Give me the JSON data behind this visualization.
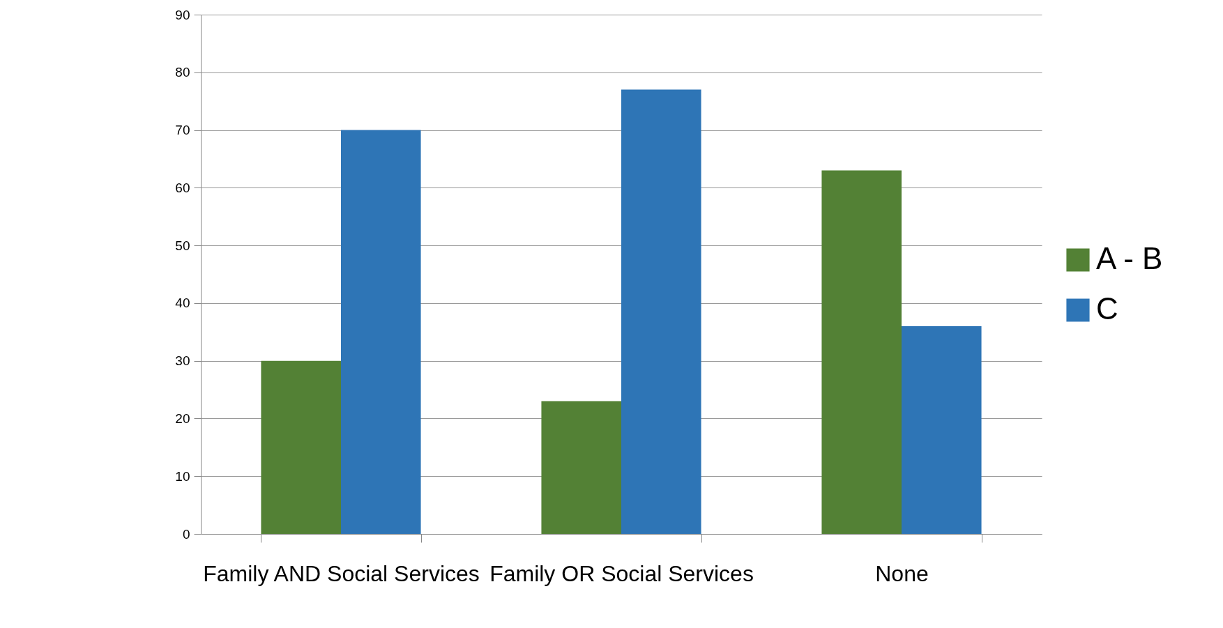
{
  "chart_data": {
    "type": "bar",
    "categories": [
      "Family AND Social Services",
      "Family OR Social Services",
      "None"
    ],
    "series": [
      {
        "name": "A - B",
        "color": "#538135",
        "values": [
          30,
          23,
          63
        ]
      },
      {
        "name": "C",
        "color": "#2e75b6",
        "values": [
          70,
          77,
          36
        ]
      }
    ],
    "ylim": [
      0,
      90
    ],
    "yticks": [
      0,
      10,
      20,
      30,
      40,
      50,
      60,
      70,
      80,
      90
    ],
    "grid": "y",
    "legend": "right"
  }
}
